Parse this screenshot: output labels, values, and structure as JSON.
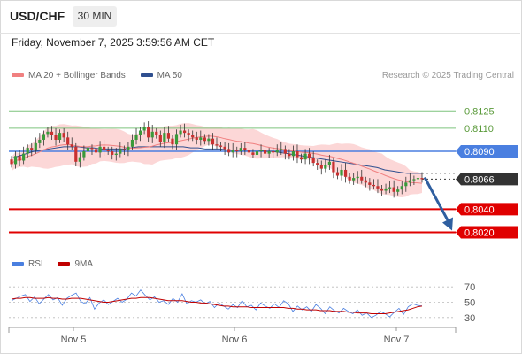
{
  "header": {
    "symbol": "USD/CHF",
    "timeframe": "30 MIN",
    "timestamp": "Friday, November 7, 2025 3:59:56 AM CET"
  },
  "attribution": "Research © 2025 Trading Central",
  "colors": {
    "up_candle": "#3a9a3a",
    "down_candle": "#c93030",
    "bollinger_fill": "#fbd0d0",
    "ma20": "#f08080",
    "ma50": "#2f4f8f",
    "resistance": "#7dc47d",
    "pivot": "#4a7fe0",
    "support": "#e00000",
    "current": "#333333",
    "arrow": "#2f5fa0",
    "rsi": "#4a7fe0",
    "rsi_ma": "#c00000"
  },
  "chart_data": [
    {
      "type": "candlestick",
      "legend": [
        {
          "label": "MA 20 + Bollinger Bands",
          "color": "#f08080"
        },
        {
          "label": "MA 50",
          "color": "#2f4f8f"
        }
      ],
      "y_range": [
        0.8012,
        0.8139
      ],
      "x_ticks": [
        "Nov 5",
        "Nov 6",
        "Nov 7"
      ],
      "levels": [
        {
          "label": "0.8125",
          "value": 0.8125,
          "kind": "resistance"
        },
        {
          "label": "0.8110",
          "value": 0.811,
          "kind": "resistance"
        },
        {
          "label": "0.8090",
          "value": 0.809,
          "kind": "pivot"
        },
        {
          "label": "0.8066",
          "value": 0.8066,
          "kind": "current"
        },
        {
          "label": "0.8040",
          "value": 0.804,
          "kind": "support"
        },
        {
          "label": "0.8020",
          "value": 0.802,
          "kind": "support"
        }
      ],
      "close_series": [
        0.8079,
        0.8086,
        0.8082,
        0.8088,
        0.8093,
        0.8091,
        0.8097,
        0.81,
        0.8105,
        0.8107,
        0.8104,
        0.81,
        0.8106,
        0.8102,
        0.8096,
        0.8094,
        0.8081,
        0.8085,
        0.809,
        0.8093,
        0.8092,
        0.8089,
        0.8094,
        0.8091,
        0.809,
        0.8087,
        0.8088,
        0.8092,
        0.8091,
        0.8094,
        0.81,
        0.8104,
        0.8108,
        0.8111,
        0.8102,
        0.8107,
        0.8104,
        0.8098,
        0.8106,
        0.8101,
        0.8096,
        0.8105,
        0.8108,
        0.8106,
        0.8104,
        0.8102,
        0.81,
        0.8102,
        0.8099,
        0.8101,
        0.8096,
        0.8095,
        0.8094,
        0.8092,
        0.8089,
        0.8091,
        0.809,
        0.8093,
        0.8091,
        0.8089,
        0.8087,
        0.809,
        0.8091,
        0.8088,
        0.809,
        0.8089,
        0.8091,
        0.8092,
        0.8088,
        0.8086,
        0.809,
        0.8085,
        0.8083,
        0.8088,
        0.8084,
        0.808,
        0.8078,
        0.8075,
        0.8078,
        0.8081,
        0.8072,
        0.8069,
        0.8074,
        0.8068,
        0.8065,
        0.8067,
        0.8068,
        0.8065,
        0.8063,
        0.8061,
        0.806,
        0.8058,
        0.8056,
        0.8058,
        0.8059,
        0.8055,
        0.8057,
        0.806,
        0.8063,
        0.8065,
        0.8066,
        0.8067,
        0.8066
      ],
      "ma50_series": [
        0.8084,
        0.8086,
        0.8088,
        0.809,
        0.8091,
        0.8092,
        0.8093,
        0.8094,
        0.8094,
        0.8094,
        0.8093,
        0.8093,
        0.8092,
        0.8092,
        0.8092,
        0.8092,
        0.8093,
        0.8094,
        0.8094,
        0.8094,
        0.8094,
        0.8094,
        0.8094,
        0.8094,
        0.8093,
        0.8093,
        0.8092,
        0.8092,
        0.8092,
        0.8091,
        0.8091,
        0.8091,
        0.8091,
        0.8091,
        0.809,
        0.809,
        0.8089,
        0.8088,
        0.8087,
        0.8086,
        0.8085,
        0.8084,
        0.8083,
        0.8082,
        0.8081,
        0.808,
        0.8079,
        0.8078,
        0.8077,
        0.8076,
        0.8074,
        0.8073,
        0.8072,
        0.8071,
        0.8071,
        0.8071
      ],
      "forecast": {
        "from": 0.8066,
        "to": 0.802
      }
    },
    {
      "type": "line",
      "legend": [
        {
          "label": "RSI",
          "color": "#4a7fe0"
        },
        {
          "label": "9MA",
          "color": "#c00000"
        }
      ],
      "y_ticks": [
        "70",
        "50",
        "30"
      ],
      "y_range": [
        24,
        76
      ],
      "series": [
        {
          "name": "RSI",
          "values": [
            52,
            55,
            58,
            60,
            51,
            57,
            48,
            54,
            60,
            53,
            56,
            46,
            55,
            59,
            62,
            51,
            48,
            56,
            41,
            49,
            53,
            47,
            51,
            55,
            50,
            54,
            62,
            58,
            66,
            59,
            53,
            57,
            50,
            52,
            47,
            55,
            50,
            61,
            48,
            52,
            50,
            53,
            48,
            51,
            43,
            49,
            45,
            41,
            47,
            43,
            52,
            44,
            46,
            40,
            49,
            45,
            42,
            48,
            43,
            52,
            48,
            38,
            45,
            40,
            44,
            38,
            47,
            42,
            35,
            44,
            39,
            36,
            42,
            38,
            35,
            40,
            33,
            36,
            30,
            33,
            38,
            35,
            31,
            37,
            42,
            34,
            44,
            48,
            46,
            45
          ]
        },
        {
          "name": "9MA",
          "values": [
            54,
            55,
            55,
            56,
            56,
            55,
            55,
            55,
            56,
            55,
            55,
            54,
            54,
            55,
            55,
            55,
            54,
            53,
            52,
            51,
            50,
            50,
            51,
            52,
            53,
            54,
            55,
            55,
            56,
            56,
            56,
            55,
            54,
            53,
            52,
            52,
            52,
            52,
            51,
            50,
            50,
            49,
            49,
            48,
            47,
            46,
            45,
            45,
            44,
            44,
            44,
            44,
            43,
            43,
            43,
            43,
            43,
            43,
            43,
            43,
            42,
            42,
            41,
            41,
            40,
            40,
            40,
            39,
            39,
            39,
            38,
            38,
            38,
            37,
            37,
            36,
            36,
            36,
            35,
            35,
            35,
            35,
            36,
            37,
            38,
            39,
            40,
            42,
            44,
            45
          ]
        }
      ]
    }
  ]
}
